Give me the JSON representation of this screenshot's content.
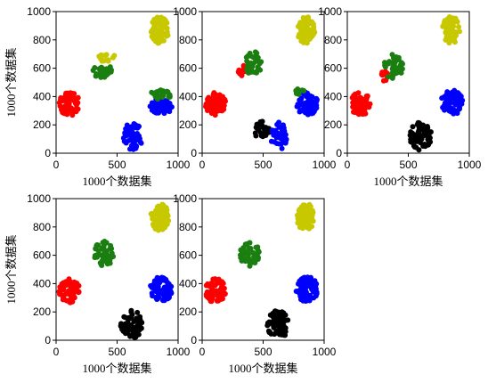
{
  "colors": {
    "red": "#ff0000",
    "green": "#1a7f10",
    "blue": "#0000ff",
    "yellow": "#c8c800",
    "black": "#000000"
  },
  "chart_data": [
    {
      "type": "scatter",
      "xlabel": "1000个数据集",
      "ylabel": "1000个数据集",
      "xlim": [
        0,
        1000
      ],
      "ylim": [
        0,
        1000
      ],
      "xticks": [
        0,
        500,
        1000
      ],
      "yticks": [
        0,
        200,
        400,
        600,
        800,
        1000
      ],
      "clusters": [
        {
          "color": "red",
          "cx": 110,
          "cy": 350,
          "rx": 85,
          "ry": 85,
          "n": 70
        },
        {
          "color": "yellow",
          "cx": 850,
          "cy": 870,
          "rx": 75,
          "ry": 95,
          "n": 70
        },
        {
          "color": "yellow",
          "cx": 410,
          "cy": 680,
          "rx": 70,
          "ry": 35,
          "n": 14
        },
        {
          "color": "green",
          "cx": 380,
          "cy": 580,
          "rx": 80,
          "ry": 50,
          "n": 35
        },
        {
          "color": "blue",
          "cx": 630,
          "cy": 120,
          "rx": 80,
          "ry": 100,
          "n": 60
        },
        {
          "color": "blue",
          "cx": 860,
          "cy": 330,
          "rx": 90,
          "ry": 55,
          "n": 55
        },
        {
          "color": "green",
          "cx": 860,
          "cy": 415,
          "rx": 90,
          "ry": 35,
          "n": 25
        }
      ]
    },
    {
      "type": "scatter",
      "xlabel": "",
      "ylabel": "",
      "xlim": [
        0,
        1000
      ],
      "ylim": [
        0,
        1000
      ],
      "xticks": [
        0,
        500,
        1000
      ],
      "yticks": [
        0,
        200,
        400,
        600,
        800,
        1000
      ],
      "clusters": [
        {
          "color": "red",
          "cx": 110,
          "cy": 350,
          "rx": 85,
          "ry": 85,
          "n": 70
        },
        {
          "color": "yellow",
          "cx": 850,
          "cy": 870,
          "rx": 75,
          "ry": 95,
          "n": 70
        },
        {
          "color": "red",
          "cx": 330,
          "cy": 580,
          "rx": 40,
          "ry": 40,
          "n": 12
        },
        {
          "color": "green",
          "cx": 420,
          "cy": 630,
          "rx": 70,
          "ry": 90,
          "n": 40
        },
        {
          "color": "black",
          "cx": 490,
          "cy": 160,
          "rx": 60,
          "ry": 70,
          "n": 25
        },
        {
          "color": "blue",
          "cx": 630,
          "cy": 120,
          "rx": 70,
          "ry": 100,
          "n": 40
        },
        {
          "color": "blue",
          "cx": 860,
          "cy": 350,
          "rx": 90,
          "ry": 80,
          "n": 70
        },
        {
          "color": "green",
          "cx": 800,
          "cy": 430,
          "rx": 50,
          "ry": 25,
          "n": 10
        }
      ]
    },
    {
      "type": "scatter",
      "xlabel": "1000个数据集",
      "ylabel": "",
      "xlim": [
        0,
        1000
      ],
      "ylim": [
        0,
        1000
      ],
      "xticks": [
        0,
        500,
        1000
      ],
      "yticks": [
        0,
        200,
        400,
        600,
        800,
        1000
      ],
      "clusters": [
        {
          "color": "red",
          "cx": 110,
          "cy": 350,
          "rx": 85,
          "ry": 85,
          "n": 70
        },
        {
          "color": "yellow",
          "cx": 850,
          "cy": 870,
          "rx": 75,
          "ry": 95,
          "n": 70
        },
        {
          "color": "red",
          "cx": 300,
          "cy": 550,
          "rx": 35,
          "ry": 40,
          "n": 10
        },
        {
          "color": "green",
          "cx": 380,
          "cy": 610,
          "rx": 80,
          "ry": 90,
          "n": 40
        },
        {
          "color": "black",
          "cx": 600,
          "cy": 120,
          "rx": 90,
          "ry": 100,
          "n": 75
        },
        {
          "color": "blue",
          "cx": 860,
          "cy": 360,
          "rx": 90,
          "ry": 90,
          "n": 75
        }
      ]
    },
    {
      "type": "scatter",
      "xlabel": "1000个数据集",
      "ylabel": "1000个数据集",
      "xlim": [
        0,
        1000
      ],
      "ylim": [
        0,
        1000
      ],
      "xticks": [
        0,
        500,
        1000
      ],
      "yticks": [
        0,
        200,
        400,
        600,
        800,
        1000
      ],
      "clusters": [
        {
          "color": "red",
          "cx": 110,
          "cy": 350,
          "rx": 85,
          "ry": 85,
          "n": 70
        },
        {
          "color": "yellow",
          "cx": 850,
          "cy": 870,
          "rx": 75,
          "ry": 95,
          "n": 70
        },
        {
          "color": "green",
          "cx": 390,
          "cy": 610,
          "rx": 80,
          "ry": 90,
          "n": 45
        },
        {
          "color": "black",
          "cx": 620,
          "cy": 110,
          "rx": 90,
          "ry": 100,
          "n": 75
        },
        {
          "color": "blue",
          "cx": 860,
          "cy": 360,
          "rx": 90,
          "ry": 90,
          "n": 75
        }
      ]
    },
    {
      "type": "scatter",
      "xlabel": "1000个数据集",
      "ylabel": "",
      "xlim": [
        0,
        1000
      ],
      "ylim": [
        0,
        1000
      ],
      "xticks": [
        0,
        500,
        1000
      ],
      "yticks": [
        0,
        200,
        400,
        600,
        800,
        1000
      ],
      "clusters": [
        {
          "color": "red",
          "cx": 110,
          "cy": 350,
          "rx": 85,
          "ry": 85,
          "n": 70
        },
        {
          "color": "yellow",
          "cx": 850,
          "cy": 870,
          "rx": 75,
          "ry": 95,
          "n": 70
        },
        {
          "color": "green",
          "cx": 390,
          "cy": 610,
          "rx": 80,
          "ry": 90,
          "n": 45
        },
        {
          "color": "black",
          "cx": 620,
          "cy": 110,
          "rx": 90,
          "ry": 100,
          "n": 75
        },
        {
          "color": "blue",
          "cx": 860,
          "cy": 360,
          "rx": 90,
          "ry": 90,
          "n": 75
        }
      ]
    }
  ]
}
